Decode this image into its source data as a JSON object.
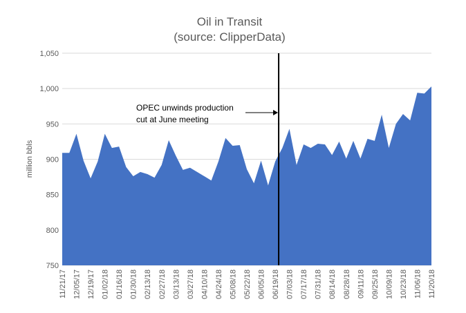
{
  "chart_data": {
    "type": "area",
    "title": "Oil in Transit",
    "subtitle": "(source: ClipperData)",
    "ylabel": "million bbls",
    "xlabel": "",
    "ylim": [
      750,
      1050
    ],
    "yticks": [
      "750",
      "800",
      "850",
      "900",
      "950",
      "1,000",
      "1,050"
    ],
    "ytick_values": [
      750,
      800,
      850,
      900,
      950,
      1000,
      1050
    ],
    "grid": true,
    "legend": "none",
    "color": "#4472C4",
    "x_tick_labels": [
      "11/21/17",
      "12/05/17",
      "12/19/17",
      "01/02/18",
      "01/16/18",
      "01/30/18",
      "02/13/18",
      "02/27/18",
      "03/13/18",
      "03/27/18",
      "04/10/18",
      "04/24/18",
      "05/08/18",
      "05/22/18",
      "06/05/18",
      "06/19/18",
      "07/03/18",
      "07/17/18",
      "07/31/18",
      "08/14/18",
      "08/28/18",
      "09/11/18",
      "09/25/18",
      "10/09/18",
      "10/23/18",
      "11/06/18",
      "11/20/18"
    ],
    "x": [
      "11/21/17",
      "11/28/17",
      "12/05/17",
      "12/12/17",
      "12/19/17",
      "12/26/17",
      "01/02/18",
      "01/09/18",
      "01/16/18",
      "01/23/18",
      "01/30/18",
      "02/06/18",
      "02/13/18",
      "02/20/18",
      "02/27/18",
      "03/06/18",
      "03/13/18",
      "03/20/18",
      "03/27/18",
      "04/03/18",
      "04/10/18",
      "04/17/18",
      "04/24/18",
      "05/01/18",
      "05/08/18",
      "05/15/18",
      "05/22/18",
      "05/29/18",
      "06/05/18",
      "06/12/18",
      "06/19/18",
      "06/26/18",
      "07/03/18",
      "07/10/18",
      "07/17/18",
      "07/24/18",
      "07/31/18",
      "08/07/18",
      "08/14/18",
      "08/21/18",
      "08/28/18",
      "09/04/18",
      "09/11/18",
      "09/18/18",
      "09/25/18",
      "10/02/18",
      "10/09/18",
      "10/16/18",
      "10/23/18",
      "10/30/18",
      "11/06/18",
      "11/13/18",
      "11/20/18"
    ],
    "values": [
      909,
      909,
      936,
      898,
      873,
      897,
      936,
      916,
      918,
      889,
      876,
      882,
      879,
      874,
      892,
      927,
      905,
      885,
      888,
      882,
      876,
      870,
      897,
      930,
      919,
      920,
      886,
      866,
      898,
      863,
      897,
      916,
      943,
      892,
      921,
      916,
      922,
      921,
      906,
      925,
      901,
      926,
      901,
      929,
      926,
      963,
      916,
      950,
      964,
      955,
      994,
      993,
      1003
    ],
    "annotation": {
      "text_lines": [
        "OPEC unwinds production",
        "cut at June meeting"
      ],
      "x": "06/19/18"
    }
  }
}
